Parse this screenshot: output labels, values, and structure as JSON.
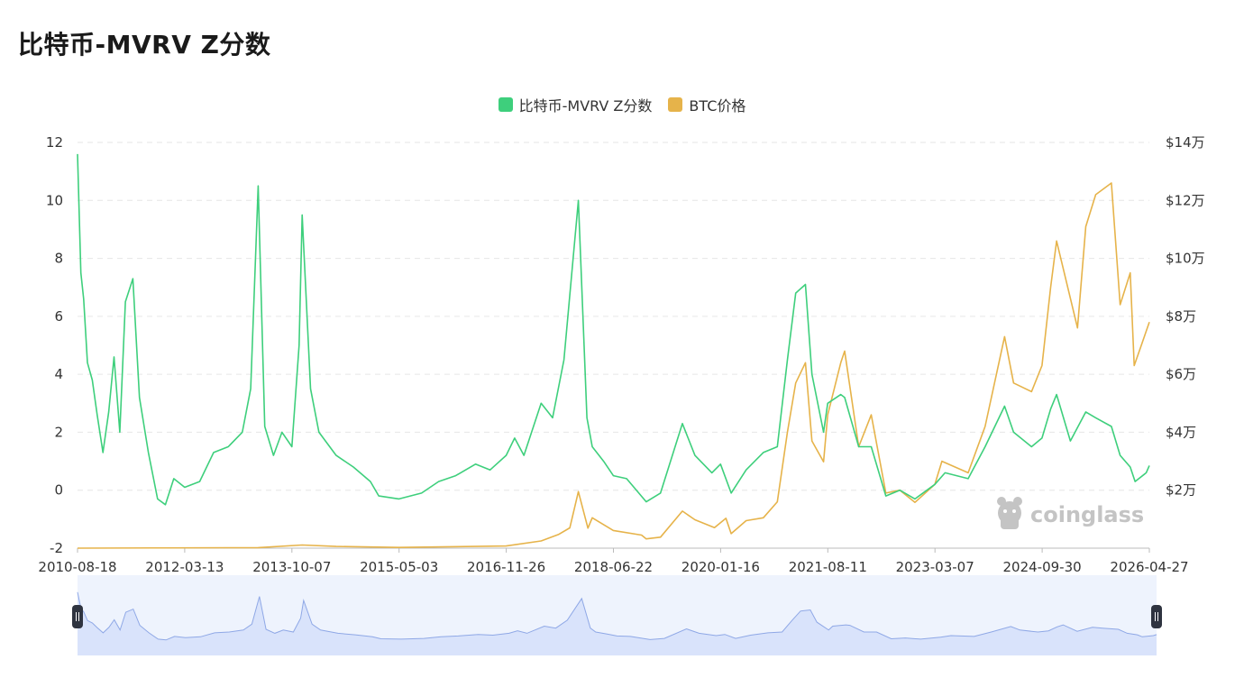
{
  "page": {
    "title": "比特币-MVRV Z分数"
  },
  "legend": [
    {
      "label": "比特币-MVRV Z分数",
      "color": "#3ecf7c"
    },
    {
      "label": "BTC价格",
      "color": "#e6b34a"
    }
  ],
  "watermark": {
    "text": "coinglass",
    "icon": "coinglass-logo-icon"
  },
  "navigator": {
    "handle_left": "handle-grip-icon",
    "handle_right": "handle-grip-icon"
  },
  "colors": {
    "z": "#3ecf7c",
    "price": "#e6b34a",
    "nav_fill": "#d9e3fb",
    "nav_line": "#8fa8e6",
    "grid": "#e6e6e6"
  },
  "chart_data": {
    "type": "line",
    "title": "比特币-MVRV Z分数",
    "x_tick_labels": [
      "2010-08-18",
      "2012-03-13",
      "2013-10-07",
      "2015-05-03",
      "2016-11-26",
      "2018-06-22",
      "2020-01-16",
      "2021-08-11",
      "2023-03-07",
      "2024-09-30",
      "2026-04-27"
    ],
    "y_left": {
      "ticks": [
        -2,
        0,
        2,
        4,
        6,
        8,
        10,
        12
      ],
      "range": [
        -2,
        12
      ]
    },
    "y_right": {
      "tick_labels": [
        "$2万",
        "$4万",
        "$6万",
        "$8万",
        "$10万",
        "$12万",
        "$14万"
      ],
      "ticks": [
        20000,
        40000,
        60000,
        80000,
        100000,
        120000,
        140000
      ],
      "range": [
        0,
        140000
      ]
    },
    "grid": true,
    "legend_position": "top-center",
    "series": [
      {
        "name": "比特币-MVRV Z分数",
        "axis": "left",
        "points": [
          [
            "2010-08-18",
            11.6
          ],
          [
            "2010-09-05",
            7.5
          ],
          [
            "2010-09-20",
            6.6
          ],
          [
            "2010-10-10",
            4.4
          ],
          [
            "2010-11-05",
            3.8
          ],
          [
            "2010-12-01",
            2.6
          ],
          [
            "2011-01-01",
            1.3
          ],
          [
            "2011-02-01",
            2.7
          ],
          [
            "2011-03-01",
            4.6
          ],
          [
            "2011-04-01",
            2.0
          ],
          [
            "2011-05-01",
            6.5
          ],
          [
            "2011-06-10",
            7.3
          ],
          [
            "2011-07-15",
            3.2
          ],
          [
            "2011-09-01",
            1.3
          ],
          [
            "2011-10-20",
            -0.3
          ],
          [
            "2011-12-01",
            -0.5
          ],
          [
            "2012-01-15",
            0.4
          ],
          [
            "2012-03-13",
            0.1
          ],
          [
            "2012-06-01",
            0.3
          ],
          [
            "2012-08-15",
            1.3
          ],
          [
            "2012-11-01",
            1.5
          ],
          [
            "2013-01-15",
            2.0
          ],
          [
            "2013-03-01",
            3.5
          ],
          [
            "2013-04-10",
            10.5
          ],
          [
            "2013-05-15",
            2.2
          ],
          [
            "2013-07-01",
            1.2
          ],
          [
            "2013-08-15",
            2.0
          ],
          [
            "2013-10-07",
            1.5
          ],
          [
            "2013-11-15",
            5.0
          ],
          [
            "2013-12-01",
            9.5
          ],
          [
            "2014-01-15",
            3.5
          ],
          [
            "2014-03-01",
            2.0
          ],
          [
            "2014-06-01",
            1.2
          ],
          [
            "2014-09-01",
            0.8
          ],
          [
            "2014-12-01",
            0.3
          ],
          [
            "2015-01-15",
            -0.2
          ],
          [
            "2015-05-03",
            -0.3
          ],
          [
            "2015-09-01",
            -0.1
          ],
          [
            "2015-12-01",
            0.3
          ],
          [
            "2016-03-01",
            0.5
          ],
          [
            "2016-06-15",
            0.9
          ],
          [
            "2016-09-01",
            0.7
          ],
          [
            "2016-11-26",
            1.2
          ],
          [
            "2017-01-10",
            1.8
          ],
          [
            "2017-03-01",
            1.2
          ],
          [
            "2017-06-01",
            3.0
          ],
          [
            "2017-08-01",
            2.5
          ],
          [
            "2017-10-01",
            4.5
          ],
          [
            "2017-12-17",
            10.0
          ],
          [
            "2018-02-01",
            2.5
          ],
          [
            "2018-03-01",
            1.5
          ],
          [
            "2018-05-01",
            1.0
          ],
          [
            "2018-06-22",
            0.5
          ],
          [
            "2018-09-01",
            0.4
          ],
          [
            "2018-12-15",
            -0.4
          ],
          [
            "2019-03-01",
            -0.1
          ],
          [
            "2019-06-26",
            2.3
          ],
          [
            "2019-09-01",
            1.2
          ],
          [
            "2019-12-01",
            0.6
          ],
          [
            "2020-01-16",
            0.9
          ],
          [
            "2020-03-13",
            -0.1
          ],
          [
            "2020-06-01",
            0.7
          ],
          [
            "2020-09-01",
            1.3
          ],
          [
            "2020-11-15",
            1.5
          ],
          [
            "2021-01-08",
            4.5
          ],
          [
            "2021-02-21",
            6.8
          ],
          [
            "2021-04-14",
            7.1
          ],
          [
            "2021-05-19",
            4.0
          ],
          [
            "2021-07-20",
            2.0
          ],
          [
            "2021-08-11",
            3.0
          ],
          [
            "2021-10-20",
            3.3
          ],
          [
            "2021-11-10",
            3.2
          ],
          [
            "2022-01-24",
            1.5
          ],
          [
            "2022-04-01",
            1.5
          ],
          [
            "2022-06-18",
            -0.2
          ],
          [
            "2022-09-01",
            0.0
          ],
          [
            "2022-11-21",
            -0.3
          ],
          [
            "2023-03-07",
            0.2
          ],
          [
            "2023-05-01",
            0.6
          ],
          [
            "2023-09-01",
            0.4
          ],
          [
            "2023-12-01",
            1.5
          ],
          [
            "2024-03-14",
            2.9
          ],
          [
            "2024-05-01",
            2.0
          ],
          [
            "2024-08-05",
            1.5
          ],
          [
            "2024-09-30",
            1.8
          ],
          [
            "2024-11-15",
            2.8
          ],
          [
            "2024-12-17",
            3.3
          ],
          [
            "2025-03-01",
            1.7
          ],
          [
            "2025-05-22",
            2.7
          ],
          [
            "2025-07-14",
            2.5
          ],
          [
            "2025-10-06",
            2.2
          ],
          [
            "2025-11-22",
            1.2
          ],
          [
            "2026-01-15",
            0.8
          ],
          [
            "2026-02-10",
            0.3
          ],
          [
            "2026-04-10",
            0.6
          ],
          [
            "2026-04-27",
            0.85
          ]
        ]
      },
      {
        "name": "BTC价格",
        "axis": "right",
        "points": [
          [
            "2010-08-18",
            0
          ],
          [
            "2013-04-10",
            200
          ],
          [
            "2013-12-01",
            1100
          ],
          [
            "2014-06-01",
            600
          ],
          [
            "2015-05-03",
            240
          ],
          [
            "2016-11-26",
            740
          ],
          [
            "2017-06-01",
            2500
          ],
          [
            "2017-09-01",
            4700
          ],
          [
            "2017-11-01",
            7000
          ],
          [
            "2017-12-17",
            19500
          ],
          [
            "2018-02-06",
            6900
          ],
          [
            "2018-03-01",
            10500
          ],
          [
            "2018-06-22",
            6100
          ],
          [
            "2018-11-20",
            4500
          ],
          [
            "2018-12-15",
            3200
          ],
          [
            "2019-03-01",
            3800
          ],
          [
            "2019-06-26",
            12800
          ],
          [
            "2019-09-01",
            9800
          ],
          [
            "2019-12-15",
            7100
          ],
          [
            "2020-01-16",
            8800
          ],
          [
            "2020-02-14",
            10300
          ],
          [
            "2020-03-13",
            5000
          ],
          [
            "2020-06-01",
            9500
          ],
          [
            "2020-09-01",
            10500
          ],
          [
            "2020-11-15",
            16000
          ],
          [
            "2021-01-08",
            40000
          ],
          [
            "2021-02-21",
            57000
          ],
          [
            "2021-04-14",
            64000
          ],
          [
            "2021-05-19",
            37000
          ],
          [
            "2021-07-20",
            29800
          ],
          [
            "2021-08-11",
            46000
          ],
          [
            "2021-10-20",
            64000
          ],
          [
            "2021-11-10",
            68000
          ],
          [
            "2022-01-24",
            35000
          ],
          [
            "2022-04-01",
            46000
          ],
          [
            "2022-06-18",
            19000
          ],
          [
            "2022-09-01",
            20000
          ],
          [
            "2022-11-21",
            15800
          ],
          [
            "2023-03-07",
            22000
          ],
          [
            "2023-04-14",
            30000
          ],
          [
            "2023-09-01",
            26000
          ],
          [
            "2023-12-01",
            42000
          ],
          [
            "2024-03-14",
            73000
          ],
          [
            "2024-05-01",
            57000
          ],
          [
            "2024-08-05",
            54000
          ],
          [
            "2024-09-30",
            63000
          ],
          [
            "2024-11-15",
            90000
          ],
          [
            "2024-12-17",
            106000
          ],
          [
            "2025-04-08",
            76000
          ],
          [
            "2025-05-22",
            111000
          ],
          [
            "2025-07-14",
            122000
          ],
          [
            "2025-10-06",
            126000
          ],
          [
            "2025-11-22",
            84000
          ],
          [
            "2026-01-15",
            95000
          ],
          [
            "2026-02-05",
            63000
          ],
          [
            "2026-03-15",
            70000
          ],
          [
            "2026-04-27",
            78000
          ]
        ]
      }
    ]
  }
}
